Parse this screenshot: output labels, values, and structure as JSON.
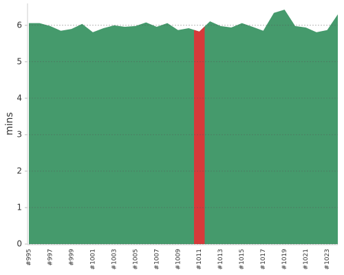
{
  "chart_data": {
    "type": "area",
    "ylabel": "mins",
    "categories": [
      "#995",
      null,
      "#997",
      null,
      "#999",
      null,
      "#1001",
      null,
      "#1003",
      null,
      "#1005",
      null,
      "#1007",
      null,
      "#1009",
      null,
      "#1011",
      null,
      "#1013",
      null,
      "#1015",
      null,
      "#1017",
      null,
      "#1019",
      null,
      "#1021",
      null,
      "#1023",
      null
    ],
    "values": [
      6.06,
      6.06,
      5.98,
      5.85,
      5.9,
      6.04,
      5.81,
      5.92,
      6.0,
      5.96,
      5.98,
      6.08,
      5.96,
      6.06,
      5.87,
      5.92,
      5.83,
      6.11,
      5.98,
      5.94,
      6.06,
      5.96,
      5.85,
      6.34,
      6.43,
      5.98,
      5.94,
      5.81,
      5.87,
      6.3
    ],
    "color": "#459a6c",
    "point_colors": [
      "#459a6c",
      "#459a6c",
      "#459a6c",
      "#459a6c",
      "#459a6c",
      "#459a6c",
      "#459a6c",
      "#459a6c",
      "#459a6c",
      "#459a6c",
      "#459a6c",
      "#459a6c",
      "#459a6c",
      "#459a6c",
      "#459a6c",
      "#459a6c",
      "#d63a3a",
      "#459a6c",
      "#459a6c",
      "#459a6c",
      "#459a6c",
      "#459a6c",
      "#459a6c",
      "#459a6c",
      "#459a6c",
      "#459a6c",
      "#459a6c",
      "#459a6c",
      "#459a6c",
      "#459a6c"
    ],
    "ylim": [
      0,
      6.6
    ],
    "yticks": [
      0,
      1,
      2,
      3,
      4,
      5,
      6
    ],
    "grid": true
  }
}
